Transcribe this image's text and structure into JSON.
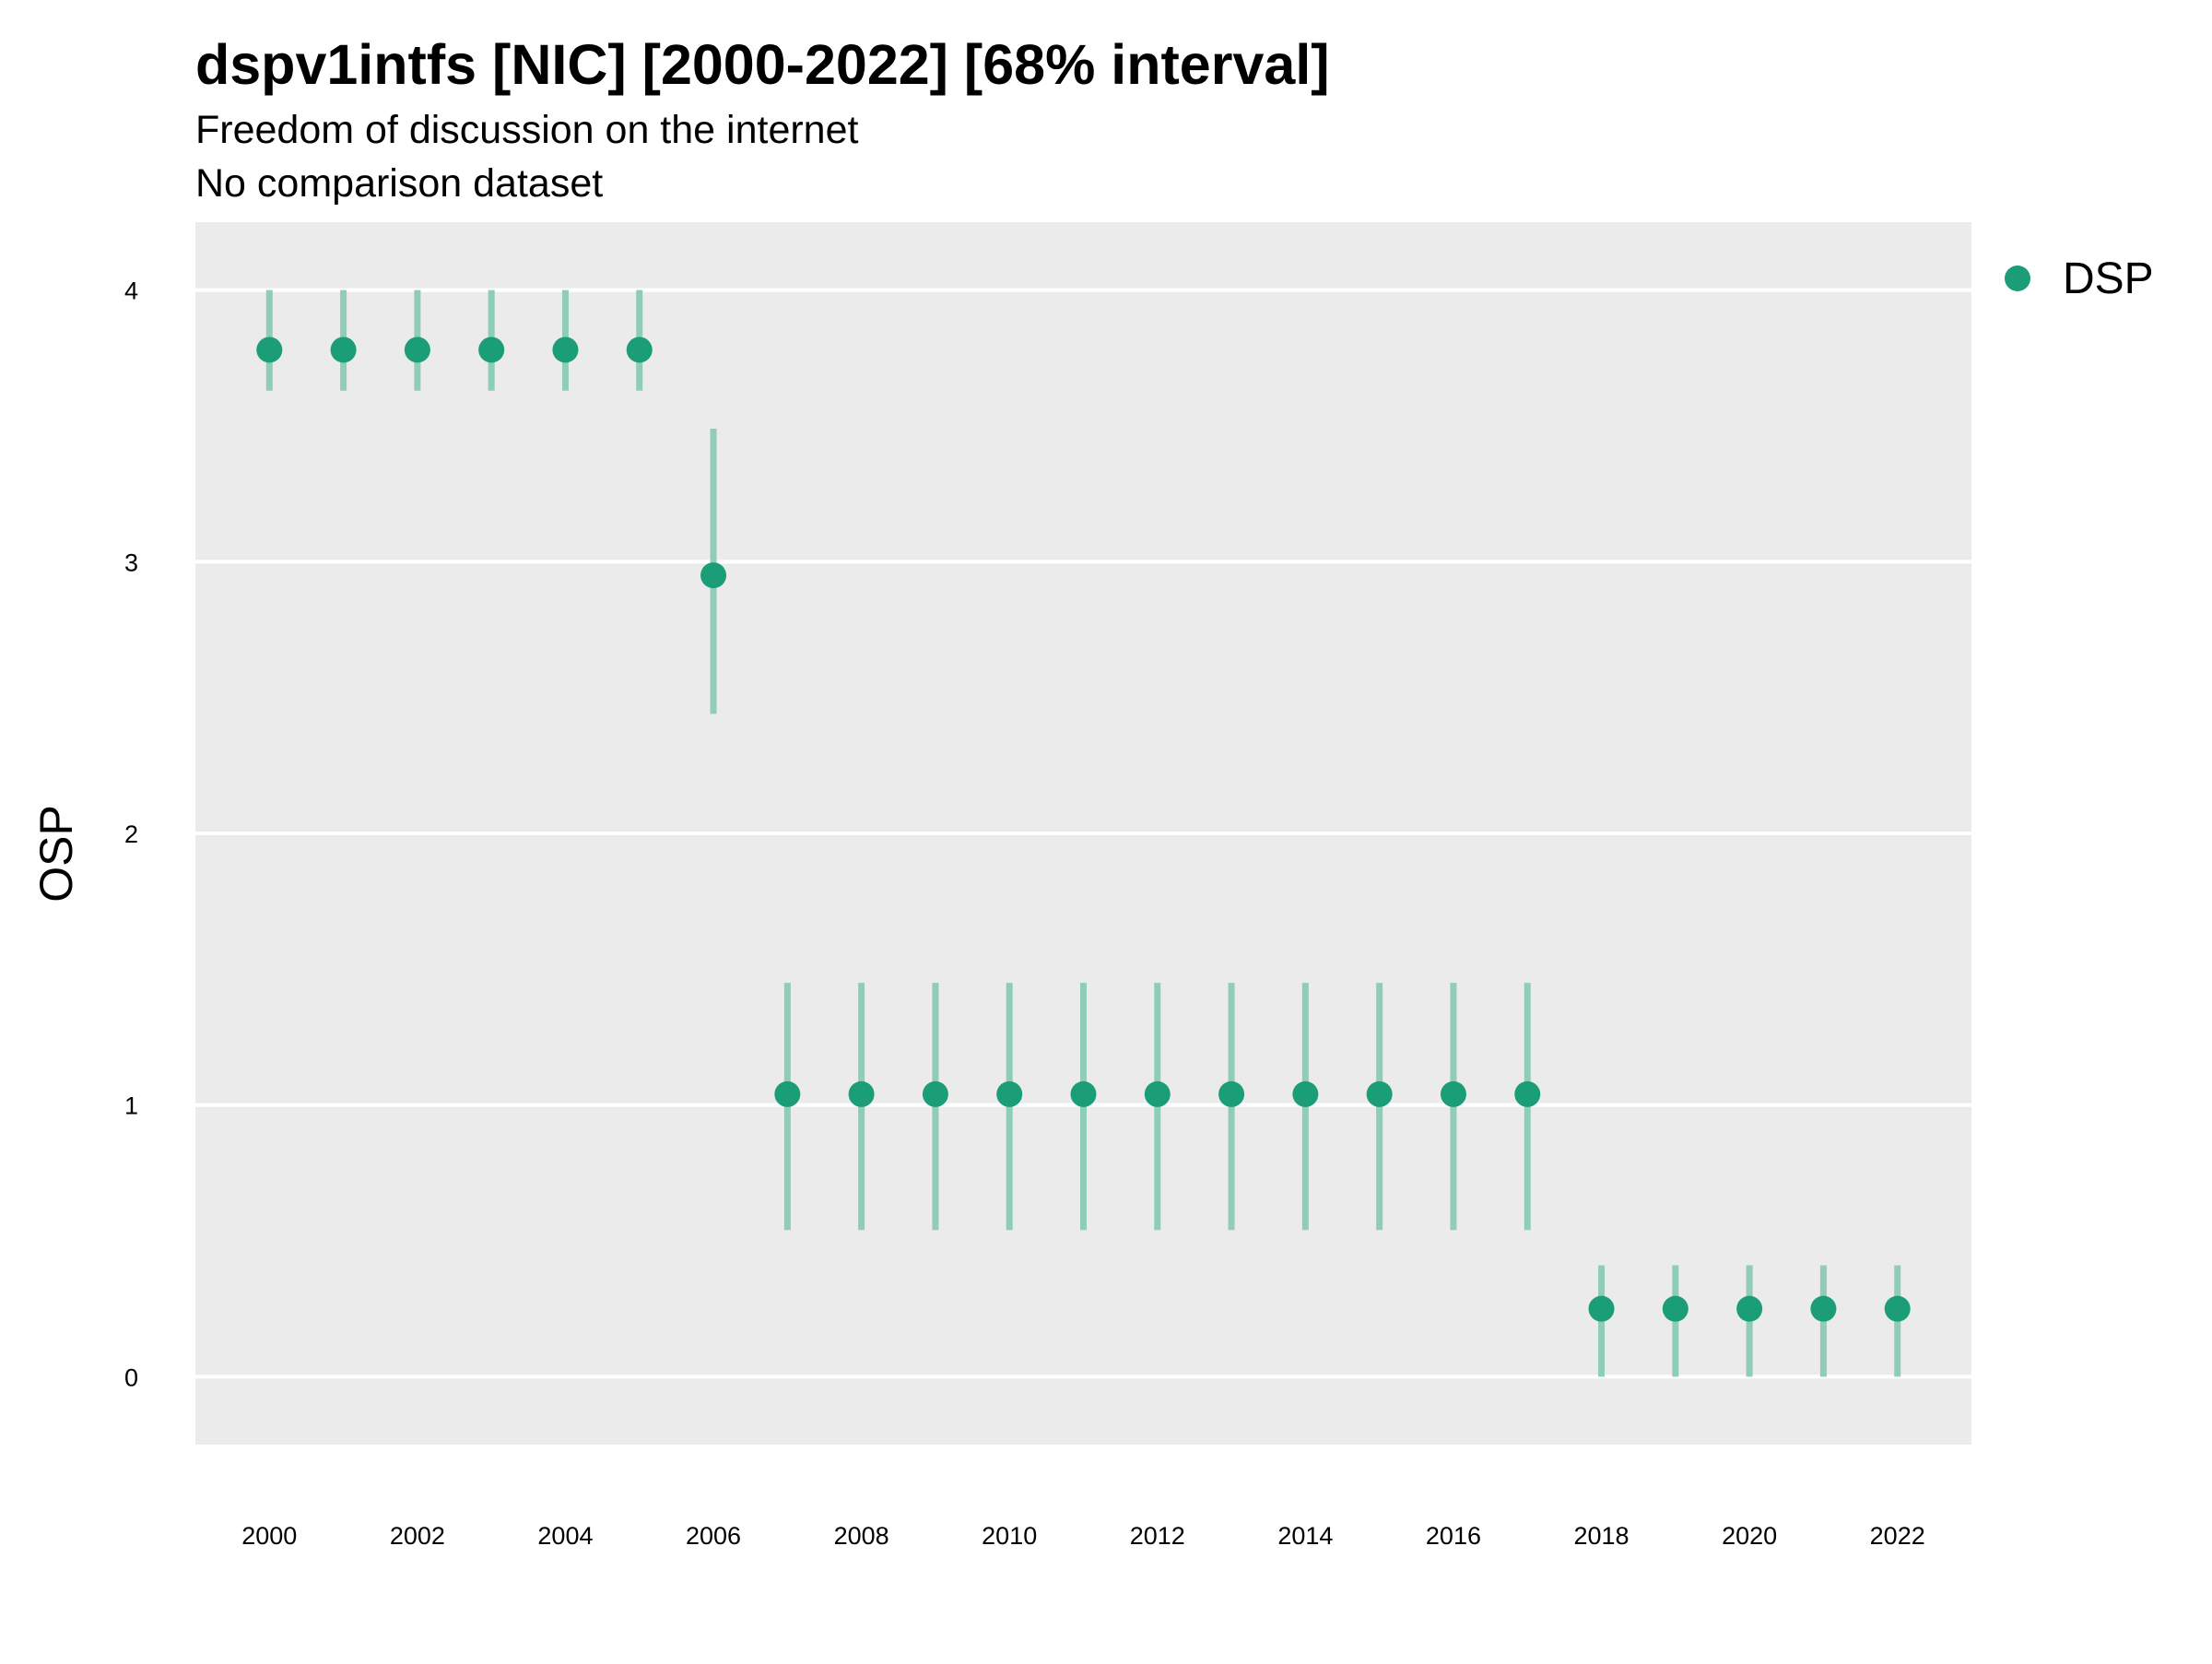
{
  "chart_data": {
    "type": "scatter",
    "title": "dspv1intfs [NIC] [2000-2022] [68% interval]",
    "subtitle": "Freedom of discussion on the internet",
    "subtitle2": "No comparison dataset",
    "xlabel": "",
    "ylabel": "OSP",
    "xlim": [
      1999,
      2023
    ],
    "ylim": [
      -0.25,
      4.25
    ],
    "x_ticks": [
      2000,
      2002,
      2004,
      2006,
      2008,
      2010,
      2012,
      2014,
      2016,
      2018,
      2020,
      2022
    ],
    "y_ticks": [
      0,
      1,
      2,
      3,
      4
    ],
    "grid": true,
    "legend_position": "right",
    "colors": {
      "panel_background": "#ebebeb",
      "grid": "#ffffff",
      "point": "#1b9e77",
      "interval": "#8fcdb8"
    },
    "series": [
      {
        "name": "DSP",
        "x": [
          2000,
          2001,
          2002,
          2003,
          2004,
          2005,
          2006,
          2007,
          2008,
          2009,
          2010,
          2011,
          2012,
          2013,
          2014,
          2015,
          2016,
          2017,
          2018,
          2019,
          2020,
          2021,
          2022
        ],
        "y": [
          3.78,
          3.78,
          3.78,
          3.78,
          3.78,
          3.78,
          2.95,
          1.04,
          1.04,
          1.04,
          1.04,
          1.04,
          1.04,
          1.04,
          1.04,
          1.04,
          1.04,
          1.04,
          0.25,
          0.25,
          0.25,
          0.25,
          0.25
        ],
        "lower": [
          3.63,
          3.63,
          3.63,
          3.63,
          3.63,
          3.63,
          2.44,
          0.54,
          0.54,
          0.54,
          0.54,
          0.54,
          0.54,
          0.54,
          0.54,
          0.54,
          0.54,
          0.54,
          0.0,
          0.0,
          0.0,
          0.0,
          0.0
        ],
        "upper": [
          4.0,
          4.0,
          4.0,
          4.0,
          4.0,
          4.0,
          3.49,
          1.45,
          1.45,
          1.45,
          1.45,
          1.45,
          1.45,
          1.45,
          1.45,
          1.45,
          1.45,
          1.45,
          0.41,
          0.41,
          0.41,
          0.41,
          0.41
        ]
      }
    ]
  }
}
